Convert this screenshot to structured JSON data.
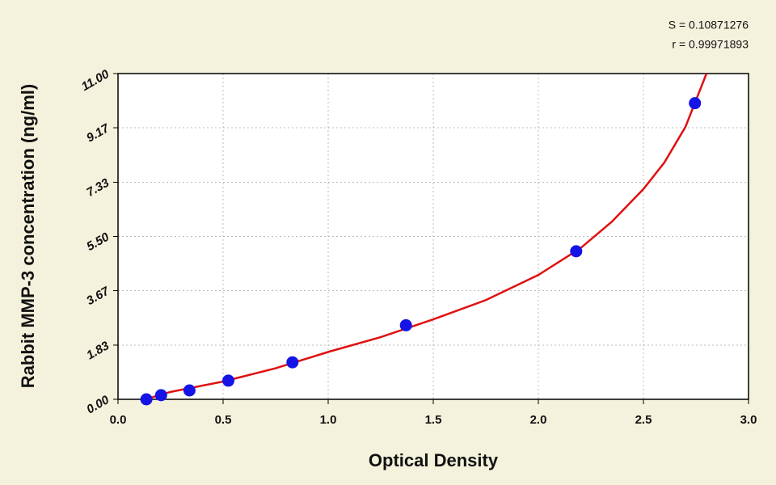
{
  "chart_data": {
    "type": "scatter",
    "annotations": [
      "S = 0.10871276",
      "r = 0.99971893"
    ],
    "x_label": "Optical Density",
    "y_label": "Rabbit MMP-3 concentration (ng/ml)",
    "xlim": [
      0,
      3
    ],
    "ylim": [
      0,
      11
    ],
    "xticks": [
      {
        "value": 0,
        "label": "0.0"
      },
      0.5,
      {
        "value": 1,
        "label": "1.0"
      },
      1.5,
      {
        "value": 2,
        "label": "2.0"
      },
      2.5,
      {
        "value": 3,
        "label": "3.0"
      }
    ],
    "yticks": [
      {
        "value": 0,
        "label": "0.00"
      },
      1.83,
      3.67,
      {
        "value": 5.5,
        "label": "5.50"
      },
      7.33,
      9.17,
      {
        "value": 11,
        "label": "11.00"
      }
    ],
    "grid": true,
    "series": [
      {
        "color": "#1414e6",
        "x": [
          0.135,
          0.205,
          0.34,
          0.525,
          0.83,
          1.37,
          2.18,
          2.745
        ],
        "values": [
          0,
          0.14,
          0.3,
          0.63,
          1.25,
          2.5,
          5,
          10
        ]
      }
    ],
    "fit": {
      "color": "#e01010",
      "x": [
        0.13,
        0.25,
        0.5,
        0.75,
        1.0,
        1.25,
        1.5,
        1.75,
        2.0,
        2.2,
        2.35,
        2.5,
        2.6,
        2.7,
        2.8
      ],
      "values": [
        0,
        0.25,
        0.6,
        1.05,
        1.6,
        2.1,
        2.7,
        3.35,
        4.2,
        5.1,
        6.0,
        7.1,
        8.0,
        9.2,
        11.0
      ]
    }
  }
}
